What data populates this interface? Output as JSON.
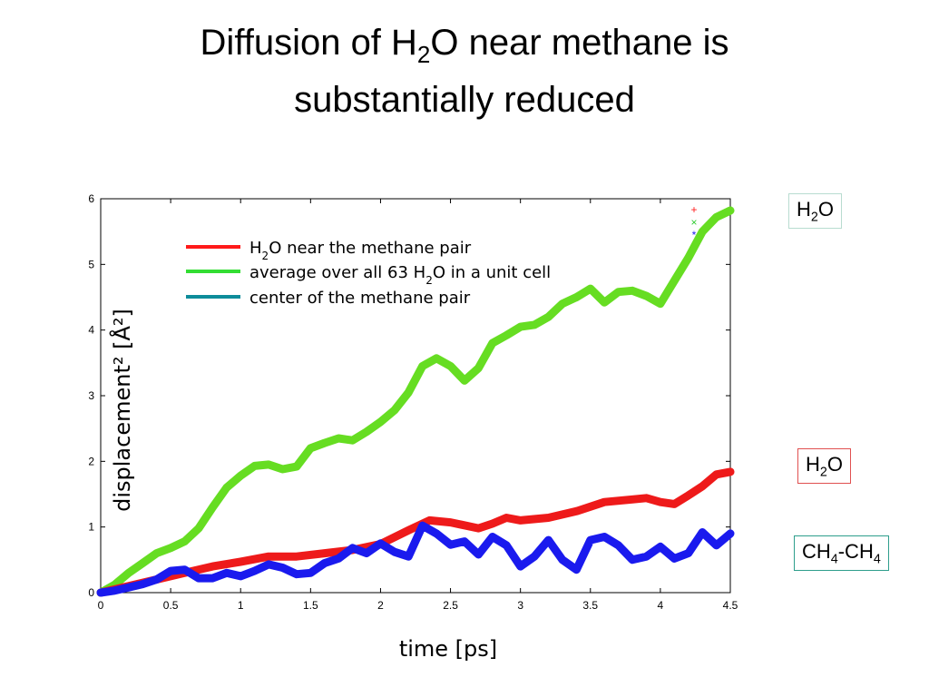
{
  "slide": {
    "title": {
      "line1_pre": "Diffusion of H",
      "line1_sub": "2",
      "line1_post": "O near methane is",
      "line2": "substantially reduced"
    }
  },
  "labels": [
    {
      "pre": "H",
      "sub": "2",
      "post": "O",
      "border_color": "#b8dcd0"
    },
    {
      "pre": "H",
      "sub": "2",
      "post": "O",
      "border_color": "#e05050"
    },
    {
      "pre": "CH",
      "sub": "4",
      "mid": "-CH",
      "sub2": "4",
      "border_color": "#2e9e8c"
    }
  ],
  "legend": [
    {
      "pre": "H",
      "sub": "2",
      "post": "O near the methane pair",
      "color": "#ff1a1a"
    },
    {
      "pre": "average over all 63 H",
      "sub": "2",
      "post": "O in a unit cell",
      "color": "#33dd33"
    },
    {
      "pre": "center of the methane pair",
      "sub": "",
      "post": "",
      "color": "#0e8c9a"
    }
  ],
  "chart_data": {
    "type": "line",
    "xlabel": "time [ps]",
    "ylabel": "displacement² [Å²]",
    "xlim": [
      0,
      4.5
    ],
    "ylim": [
      0,
      6
    ],
    "xticks": [
      "0",
      "0.5",
      "1",
      "1.5",
      "2",
      "2.5",
      "3",
      "3.5",
      "4",
      "4.5"
    ],
    "yticks": [
      "0",
      "1",
      "2",
      "3",
      "4",
      "5",
      "6"
    ],
    "grid": false,
    "legend_position": "top-left",
    "series": [
      {
        "name": "average over all 63 H2O in a unit cell",
        "color": "#66dd22",
        "points": [
          [
            0,
            0
          ],
          [
            0.1,
            0.12
          ],
          [
            0.2,
            0.3
          ],
          [
            0.3,
            0.45
          ],
          [
            0.4,
            0.6
          ],
          [
            0.5,
            0.68
          ],
          [
            0.6,
            0.78
          ],
          [
            0.7,
            0.98
          ],
          [
            0.8,
            1.3
          ],
          [
            0.9,
            1.6
          ],
          [
            1.0,
            1.78
          ],
          [
            1.1,
            1.93
          ],
          [
            1.2,
            1.95
          ],
          [
            1.3,
            1.88
          ],
          [
            1.4,
            1.92
          ],
          [
            1.5,
            2.2
          ],
          [
            1.6,
            2.28
          ],
          [
            1.7,
            2.35
          ],
          [
            1.8,
            2.32
          ],
          [
            1.9,
            2.45
          ],
          [
            2.0,
            2.6
          ],
          [
            2.1,
            2.78
          ],
          [
            2.2,
            3.05
          ],
          [
            2.3,
            3.45
          ],
          [
            2.4,
            3.57
          ],
          [
            2.5,
            3.45
          ],
          [
            2.6,
            3.23
          ],
          [
            2.7,
            3.42
          ],
          [
            2.8,
            3.8
          ],
          [
            2.9,
            3.92
          ],
          [
            3.0,
            4.05
          ],
          [
            3.1,
            4.08
          ],
          [
            3.2,
            4.2
          ],
          [
            3.3,
            4.4
          ],
          [
            3.4,
            4.5
          ],
          [
            3.5,
            4.63
          ],
          [
            3.6,
            4.42
          ],
          [
            3.7,
            4.58
          ],
          [
            3.8,
            4.6
          ],
          [
            3.9,
            4.52
          ],
          [
            4.0,
            4.4
          ],
          [
            4.1,
            4.75
          ],
          [
            4.2,
            5.1
          ],
          [
            4.3,
            5.5
          ],
          [
            4.4,
            5.72
          ],
          [
            4.5,
            5.82
          ]
        ]
      },
      {
        "name": "H2O near the methane pair",
        "color": "#ee1a1a",
        "points": [
          [
            0,
            0
          ],
          [
            0.2,
            0.1
          ],
          [
            0.4,
            0.2
          ],
          [
            0.6,
            0.3
          ],
          [
            0.8,
            0.4
          ],
          [
            1.0,
            0.47
          ],
          [
            1.2,
            0.55
          ],
          [
            1.4,
            0.55
          ],
          [
            1.6,
            0.6
          ],
          [
            1.8,
            0.65
          ],
          [
            2.0,
            0.74
          ],
          [
            2.2,
            0.95
          ],
          [
            2.35,
            1.1
          ],
          [
            2.5,
            1.07
          ],
          [
            2.7,
            0.98
          ],
          [
            2.8,
            1.05
          ],
          [
            2.9,
            1.14
          ],
          [
            3.0,
            1.1
          ],
          [
            3.2,
            1.14
          ],
          [
            3.4,
            1.24
          ],
          [
            3.6,
            1.38
          ],
          [
            3.8,
            1.42
          ],
          [
            3.9,
            1.44
          ],
          [
            4.0,
            1.38
          ],
          [
            4.1,
            1.35
          ],
          [
            4.2,
            1.48
          ],
          [
            4.3,
            1.62
          ],
          [
            4.4,
            1.8
          ],
          [
            4.5,
            1.84
          ]
        ]
      },
      {
        "name": "center of the methane pair",
        "color": "#1a1aee",
        "points": [
          [
            0,
            0
          ],
          [
            0.1,
            0.03
          ],
          [
            0.2,
            0.08
          ],
          [
            0.3,
            0.13
          ],
          [
            0.4,
            0.2
          ],
          [
            0.5,
            0.33
          ],
          [
            0.6,
            0.35
          ],
          [
            0.7,
            0.22
          ],
          [
            0.8,
            0.22
          ],
          [
            0.9,
            0.3
          ],
          [
            1.0,
            0.25
          ],
          [
            1.1,
            0.33
          ],
          [
            1.2,
            0.43
          ],
          [
            1.3,
            0.38
          ],
          [
            1.4,
            0.28
          ],
          [
            1.5,
            0.3
          ],
          [
            1.6,
            0.45
          ],
          [
            1.7,
            0.52
          ],
          [
            1.8,
            0.68
          ],
          [
            1.9,
            0.6
          ],
          [
            2.0,
            0.75
          ],
          [
            2.1,
            0.62
          ],
          [
            2.2,
            0.55
          ],
          [
            2.3,
            1.02
          ],
          [
            2.4,
            0.9
          ],
          [
            2.5,
            0.73
          ],
          [
            2.6,
            0.78
          ],
          [
            2.7,
            0.58
          ],
          [
            2.8,
            0.85
          ],
          [
            2.9,
            0.72
          ],
          [
            3.0,
            0.4
          ],
          [
            3.1,
            0.55
          ],
          [
            3.2,
            0.8
          ],
          [
            3.3,
            0.5
          ],
          [
            3.4,
            0.35
          ],
          [
            3.5,
            0.8
          ],
          [
            3.6,
            0.85
          ],
          [
            3.7,
            0.72
          ],
          [
            3.8,
            0.5
          ],
          [
            3.9,
            0.55
          ],
          [
            4.0,
            0.7
          ],
          [
            4.1,
            0.52
          ],
          [
            4.2,
            0.6
          ],
          [
            4.3,
            0.92
          ],
          [
            4.4,
            0.72
          ],
          [
            4.5,
            0.9
          ]
        ]
      }
    ],
    "corner_markers": [
      {
        "symbol": "+",
        "color": "#ff1a1a"
      },
      {
        "symbol": "×",
        "color": "#33cc33"
      },
      {
        "symbol": "*",
        "color": "#1a1aee"
      }
    ]
  }
}
